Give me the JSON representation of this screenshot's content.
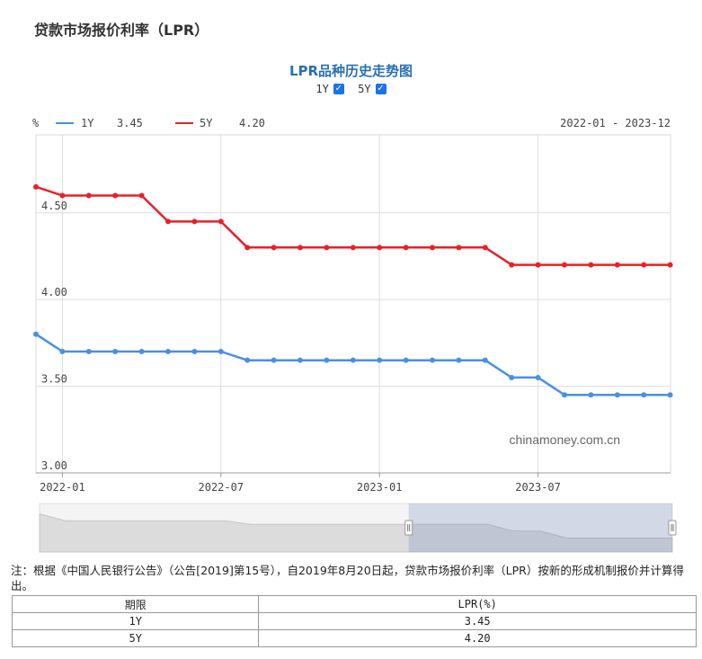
{
  "page": {
    "title": "贷款市场报价利率（LPR）"
  },
  "chart_header": {
    "title": "LPR品种历史走势图",
    "toggles": [
      {
        "label": "1Y",
        "checked": true
      },
      {
        "label": "5Y",
        "checked": true
      }
    ],
    "unit": "%",
    "range": "2022-01 - 2023-12",
    "watermark": "chinamoney.com.cn"
  },
  "chart_data": {
    "type": "line",
    "x": [
      "2021-12",
      "2022-01",
      "2022-02",
      "2022-03",
      "2022-04",
      "2022-05",
      "2022-06",
      "2022-07",
      "2022-08",
      "2022-09",
      "2022-10",
      "2022-11",
      "2022-12",
      "2023-01",
      "2023-02",
      "2023-03",
      "2023-04",
      "2023-05",
      "2023-06",
      "2023-07",
      "2023-08",
      "2023-09",
      "2023-10",
      "2023-11",
      "2023-12"
    ],
    "series": [
      {
        "name": "1Y",
        "latest": "3.45",
        "color": "#4a90e2",
        "values": [
          3.8,
          3.7,
          3.7,
          3.7,
          3.7,
          3.7,
          3.7,
          3.7,
          3.65,
          3.65,
          3.65,
          3.65,
          3.65,
          3.65,
          3.65,
          3.65,
          3.65,
          3.65,
          3.55,
          3.55,
          3.45,
          3.45,
          3.45,
          3.45,
          3.45
        ]
      },
      {
        "name": "5Y",
        "latest": "4.20",
        "color": "#e8202a",
        "values": [
          4.65,
          4.6,
          4.6,
          4.6,
          4.6,
          4.45,
          4.45,
          4.45,
          4.3,
          4.3,
          4.3,
          4.3,
          4.3,
          4.3,
          4.3,
          4.3,
          4.3,
          4.3,
          4.2,
          4.2,
          4.2,
          4.2,
          4.2,
          4.2,
          4.2
        ]
      }
    ],
    "y_ticks": [
      "4.50",
      "4.00",
      "3.50",
      "3.00"
    ],
    "x_ticks": [
      "2022-01",
      "2022-07",
      "2023-01",
      "2023-07"
    ],
    "ylim": [
      3.0,
      4.95
    ],
    "grid": true,
    "legend": "top-left"
  },
  "navigator": {
    "selected_from": "2023-02",
    "selected_to": "2023-12"
  },
  "note": "注：根据《中国人民银行公告》（公告[2019]第15号），自2019年8月20日起，贷款市场报价利率（LPR）按新的形成机制报价并计算得出。",
  "table": {
    "headers": [
      "期限",
      "LPR(%)"
    ],
    "rows": [
      [
        "1Y",
        "3.45"
      ],
      [
        "5Y",
        "4.20"
      ]
    ]
  }
}
